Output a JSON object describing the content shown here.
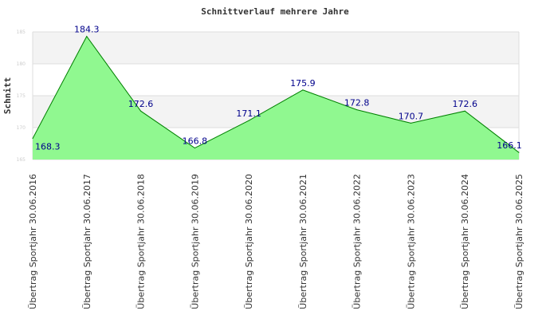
{
  "chart_data": {
    "type": "area",
    "title": "Schnittverlauf mehrere Jahre",
    "xlabel": "",
    "ylabel": "Schnitt",
    "ylim": [
      165,
      185
    ],
    "yticks": [
      165,
      170,
      175,
      180,
      185
    ],
    "grid": true,
    "categories": [
      "Übertrag Sportjahr 30.06.2016",
      "Übertrag Sportjahr 30.06.2017",
      "Übertrag Sportjahr 30.06.2018",
      "Übertrag Sportjahr 30.06.2019",
      "Übertrag Sportjahr 30.06.2020",
      "Übertrag Sportjahr 30.06.2021",
      "Übertrag Sportjahr 30.06.2022",
      "Übertrag Sportjahr 30.06.2023",
      "Übertrag Sportjahr 30.06.2024",
      "Übertrag Sportjahr 30.06.2025"
    ],
    "values": [
      168.3,
      184.3,
      172.6,
      166.8,
      171.1,
      175.9,
      172.8,
      170.7,
      172.6,
      166.1
    ],
    "colors": {
      "fill": "#90f890",
      "line": "#008000",
      "label": "#00008b",
      "band": "#f3f3f3",
      "grid": "#dddddd"
    }
  }
}
